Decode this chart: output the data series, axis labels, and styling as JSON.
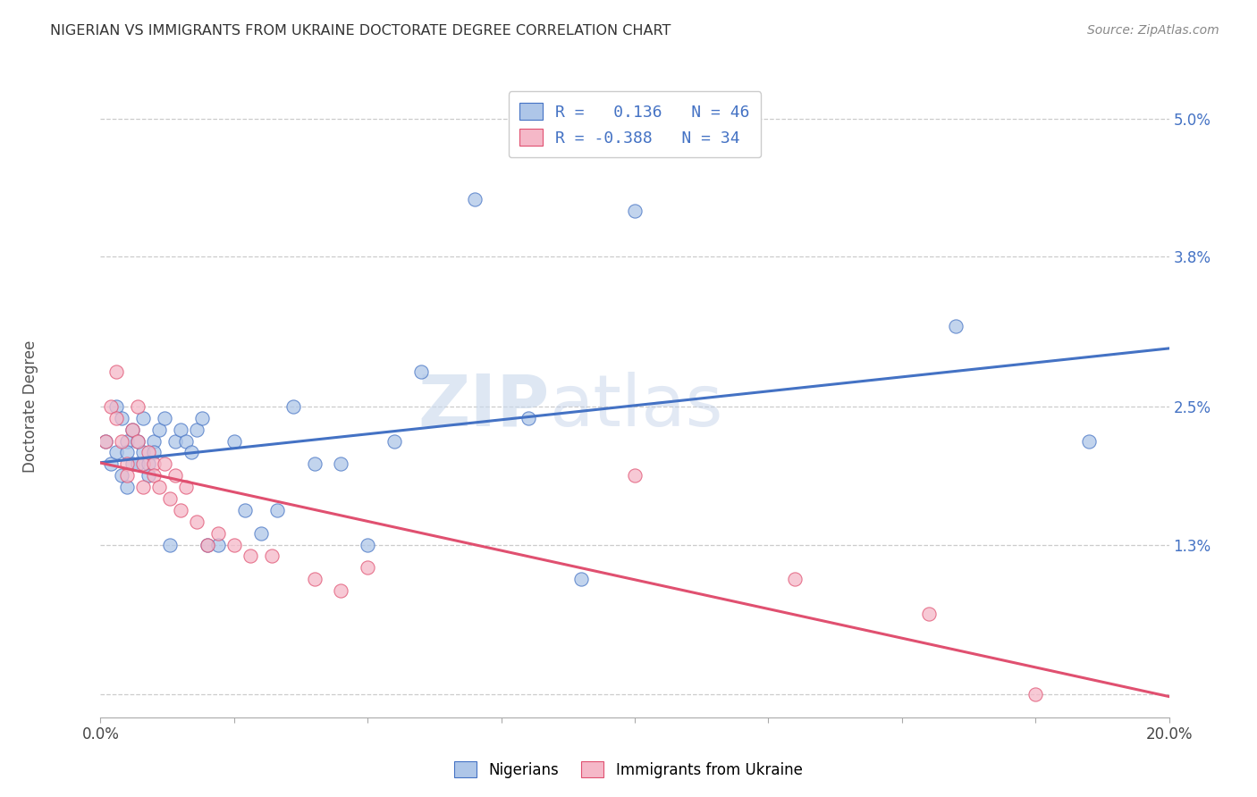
{
  "title": "NIGERIAN VS IMMIGRANTS FROM UKRAINE DOCTORATE DEGREE CORRELATION CHART",
  "source": "Source: ZipAtlas.com",
  "ylabel": "Doctorate Degree",
  "xlim": [
    0.0,
    0.2
  ],
  "ylim": [
    -0.002,
    0.052
  ],
  "yticks": [
    0.0,
    0.013,
    0.025,
    0.038,
    0.05
  ],
  "ytick_labels": [
    "",
    "1.3%",
    "2.5%",
    "3.8%",
    "5.0%"
  ],
  "xticks": [
    0.0,
    0.025,
    0.05,
    0.075,
    0.1,
    0.125,
    0.15,
    0.175,
    0.2
  ],
  "xtick_labels": [
    "0.0%",
    "",
    "",
    "",
    "",
    "",
    "",
    "",
    "20.0%"
  ],
  "watermark_zip": "ZIP",
  "watermark_atlas": "atlas",
  "blue_color": "#aec6e8",
  "pink_color": "#f5b8c8",
  "line_blue": "#4472c4",
  "line_pink": "#e05070",
  "nigerian_x": [
    0.001,
    0.002,
    0.003,
    0.003,
    0.004,
    0.004,
    0.005,
    0.005,
    0.005,
    0.006,
    0.006,
    0.007,
    0.007,
    0.008,
    0.008,
    0.009,
    0.009,
    0.01,
    0.01,
    0.011,
    0.012,
    0.013,
    0.014,
    0.015,
    0.016,
    0.017,
    0.018,
    0.019,
    0.02,
    0.022,
    0.025,
    0.027,
    0.03,
    0.033,
    0.036,
    0.04,
    0.045,
    0.05,
    0.055,
    0.06,
    0.07,
    0.08,
    0.09,
    0.1,
    0.16,
    0.185
  ],
  "nigerian_y": [
    0.022,
    0.02,
    0.025,
    0.021,
    0.024,
    0.019,
    0.022,
    0.018,
    0.021,
    0.02,
    0.023,
    0.022,
    0.02,
    0.021,
    0.024,
    0.02,
    0.019,
    0.022,
    0.021,
    0.023,
    0.024,
    0.013,
    0.022,
    0.023,
    0.022,
    0.021,
    0.023,
    0.024,
    0.013,
    0.013,
    0.022,
    0.016,
    0.014,
    0.016,
    0.025,
    0.02,
    0.02,
    0.013,
    0.022,
    0.028,
    0.043,
    0.024,
    0.01,
    0.042,
    0.032,
    0.022
  ],
  "ukraine_x": [
    0.001,
    0.002,
    0.003,
    0.003,
    0.004,
    0.005,
    0.005,
    0.006,
    0.007,
    0.007,
    0.008,
    0.008,
    0.009,
    0.01,
    0.01,
    0.011,
    0.012,
    0.013,
    0.014,
    0.015,
    0.016,
    0.018,
    0.02,
    0.022,
    0.025,
    0.028,
    0.032,
    0.04,
    0.045,
    0.05,
    0.1,
    0.13,
    0.155,
    0.175
  ],
  "ukraine_y": [
    0.022,
    0.025,
    0.028,
    0.024,
    0.022,
    0.02,
    0.019,
    0.023,
    0.022,
    0.025,
    0.02,
    0.018,
    0.021,
    0.02,
    0.019,
    0.018,
    0.02,
    0.017,
    0.019,
    0.016,
    0.018,
    0.015,
    0.013,
    0.014,
    0.013,
    0.012,
    0.012,
    0.01,
    0.009,
    0.011,
    0.019,
    0.01,
    0.007,
    0.0
  ],
  "r_nig": 0.136,
  "n_nig": 46,
  "r_ukr": -0.388,
  "n_ukr": 34
}
